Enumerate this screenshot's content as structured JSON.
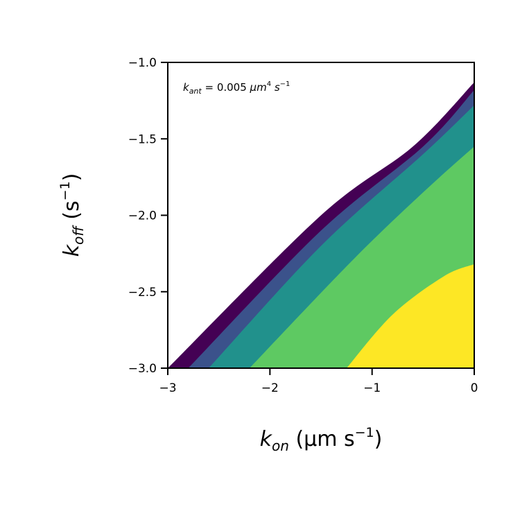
{
  "chart_data": {
    "type": "contour",
    "annotation": {
      "prefix": "k",
      "sub": "ant",
      "middle": " = 0.005 ",
      "unit_mu": "μm",
      "unit_exp": "4",
      "unit_s": " s",
      "unit_s_exp": "−1"
    },
    "xlabel": {
      "var": "k",
      "sub": "on",
      "unit_open": " (μm s",
      "unit_exp": "−1",
      "unit_close": ")"
    },
    "ylabel": {
      "var": "k",
      "sub": "off",
      "unit_open": " (s",
      "unit_exp": "−1",
      "unit_close": ")"
    },
    "xlim": [
      -3,
      0
    ],
    "ylim": [
      -3,
      -1
    ],
    "xticks": [
      -3,
      -2,
      -1,
      0
    ],
    "xtick_labels": [
      "−3",
      "−2",
      "−1",
      "0"
    ],
    "yticks": [
      -3.0,
      -2.5,
      -2.0,
      -1.5,
      -1.0
    ],
    "ytick_labels": [
      "−3.0",
      "−2.5",
      "−2.0",
      "−1.5",
      "−1.0"
    ],
    "grid": false,
    "levels": [
      {
        "color": "#440154",
        "boundary": [
          [
            -3.0,
            -3.0
          ],
          [
            -1.5,
            -2.0
          ],
          [
            -0.6,
            -1.55
          ],
          [
            0.0,
            -1.13
          ]
        ]
      },
      {
        "color": "#3b528b",
        "boundary": [
          [
            -2.8,
            -3.0
          ],
          [
            -1.5,
            -2.1
          ],
          [
            -0.5,
            -1.55
          ],
          [
            0.0,
            -1.18
          ]
        ]
      },
      {
        "color": "#21918c",
        "boundary": [
          [
            -2.6,
            -3.0
          ],
          [
            -1.5,
            -2.2
          ],
          [
            -0.5,
            -1.6
          ],
          [
            0.0,
            -1.28
          ]
        ]
      },
      {
        "color": "#5ec962",
        "boundary": [
          [
            -2.2,
            -3.0
          ],
          [
            -1.2,
            -2.3
          ],
          [
            -0.5,
            -1.85
          ],
          [
            0.0,
            -1.55
          ]
        ]
      },
      {
        "color": "#fde725",
        "boundary": [
          [
            -1.25,
            -3.0
          ],
          [
            -0.8,
            -2.65
          ],
          [
            -0.3,
            -2.4
          ],
          [
            0.0,
            -2.32
          ]
        ]
      }
    ]
  }
}
